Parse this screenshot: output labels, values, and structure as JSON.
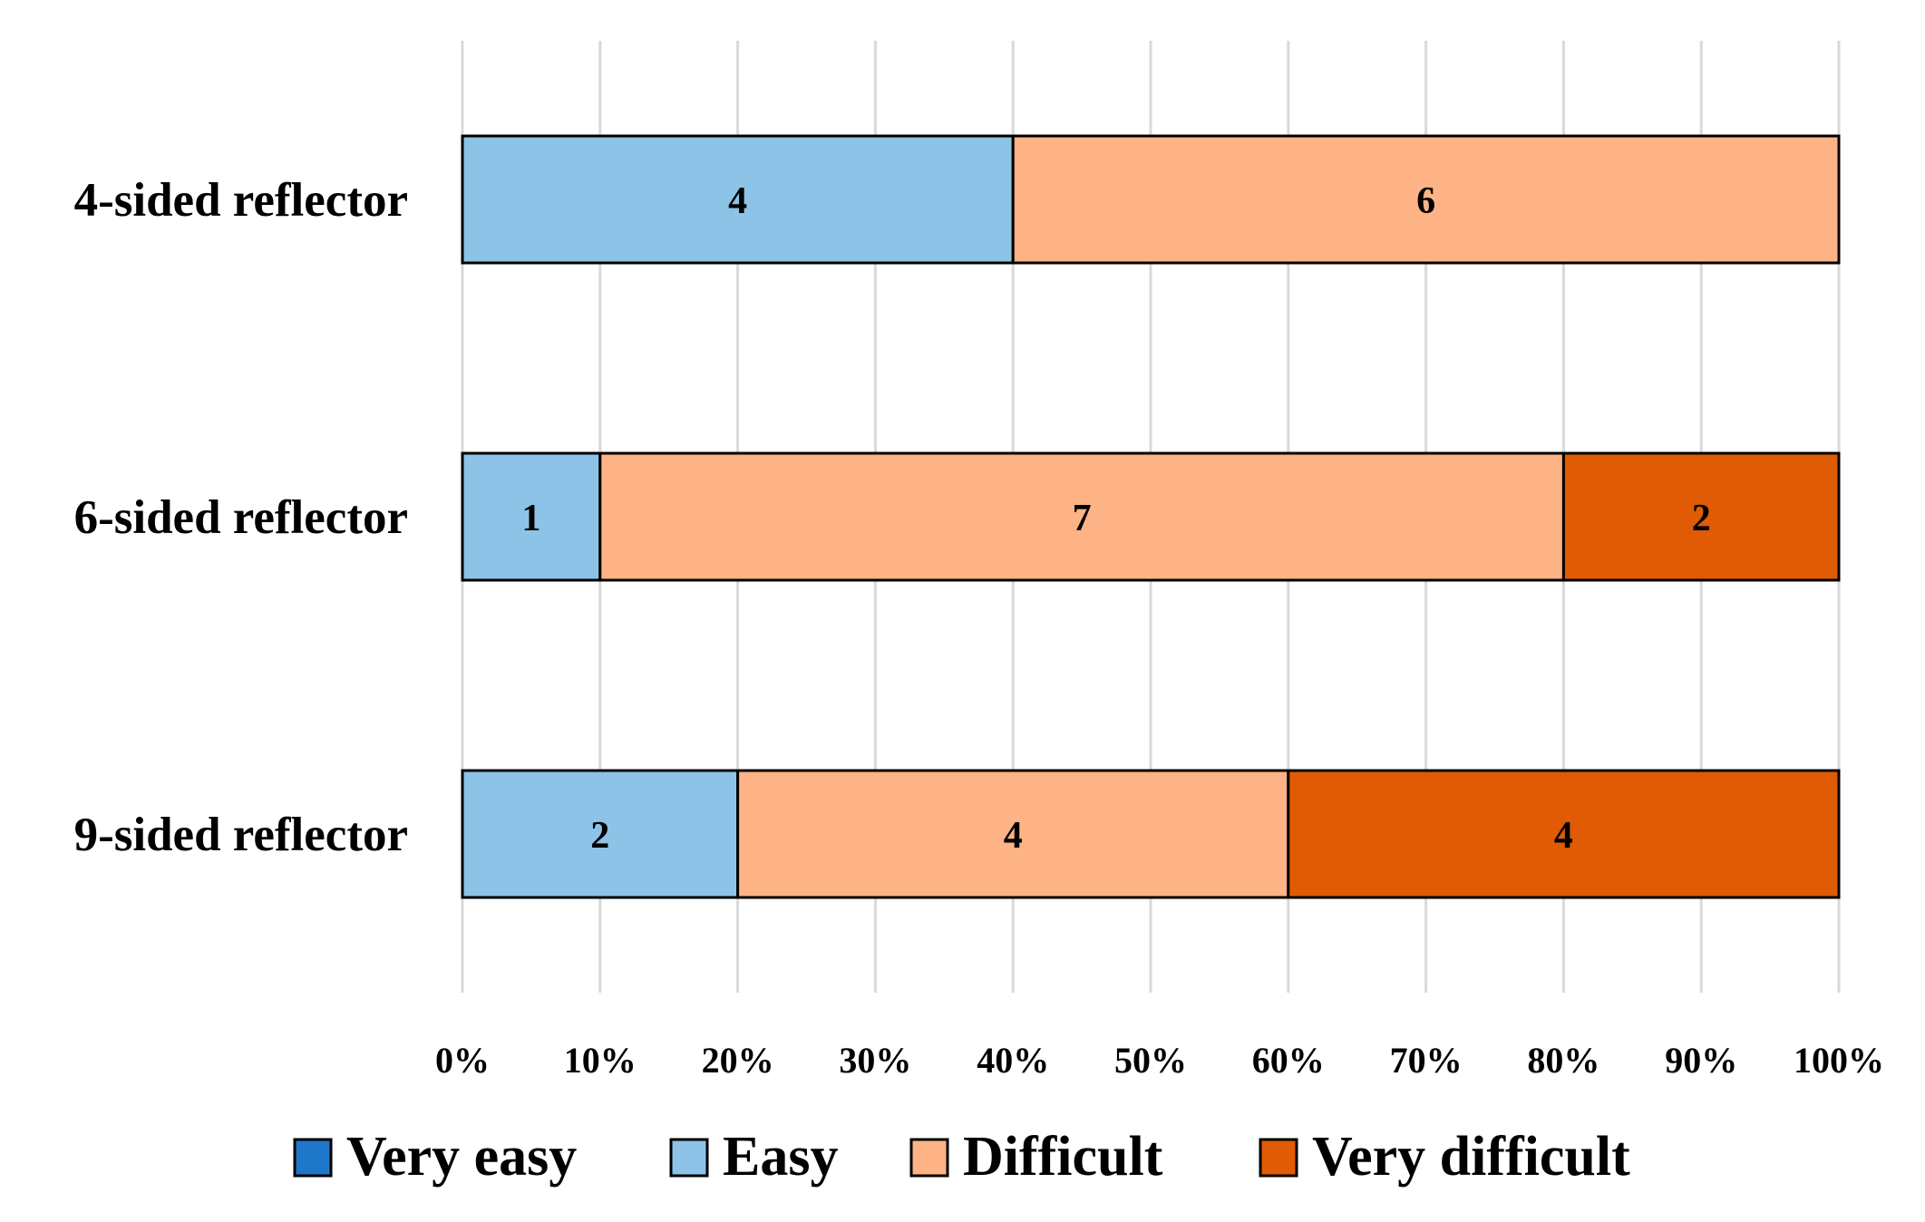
{
  "chart_data": {
    "type": "bar",
    "orientation": "horizontal",
    "stacked": "100%",
    "title": "",
    "xlabel": "",
    "ylabel": "",
    "categories": [
      "4-sided reflector",
      "6-sided reflector",
      "9-sided reflector"
    ],
    "series": [
      {
        "name": "Very easy",
        "values": [
          0,
          0,
          0
        ],
        "color": "#1f77c9"
      },
      {
        "name": "Easy",
        "values": [
          4,
          1,
          2
        ],
        "color": "#8dc3e7"
      },
      {
        "name": "Difficult",
        "values": [
          6,
          7,
          4
        ],
        "color": "#fdb385"
      },
      {
        "name": "Very difficult",
        "values": [
          0,
          2,
          4
        ],
        "color": "#e05b03"
      }
    ],
    "x_ticks": [
      "0%",
      "10%",
      "20%",
      "30%",
      "40%",
      "50%",
      "60%",
      "70%",
      "80%",
      "90%",
      "100%"
    ],
    "xlim": [
      0,
      100
    ],
    "grid": true,
    "legend_position": "bottom"
  }
}
